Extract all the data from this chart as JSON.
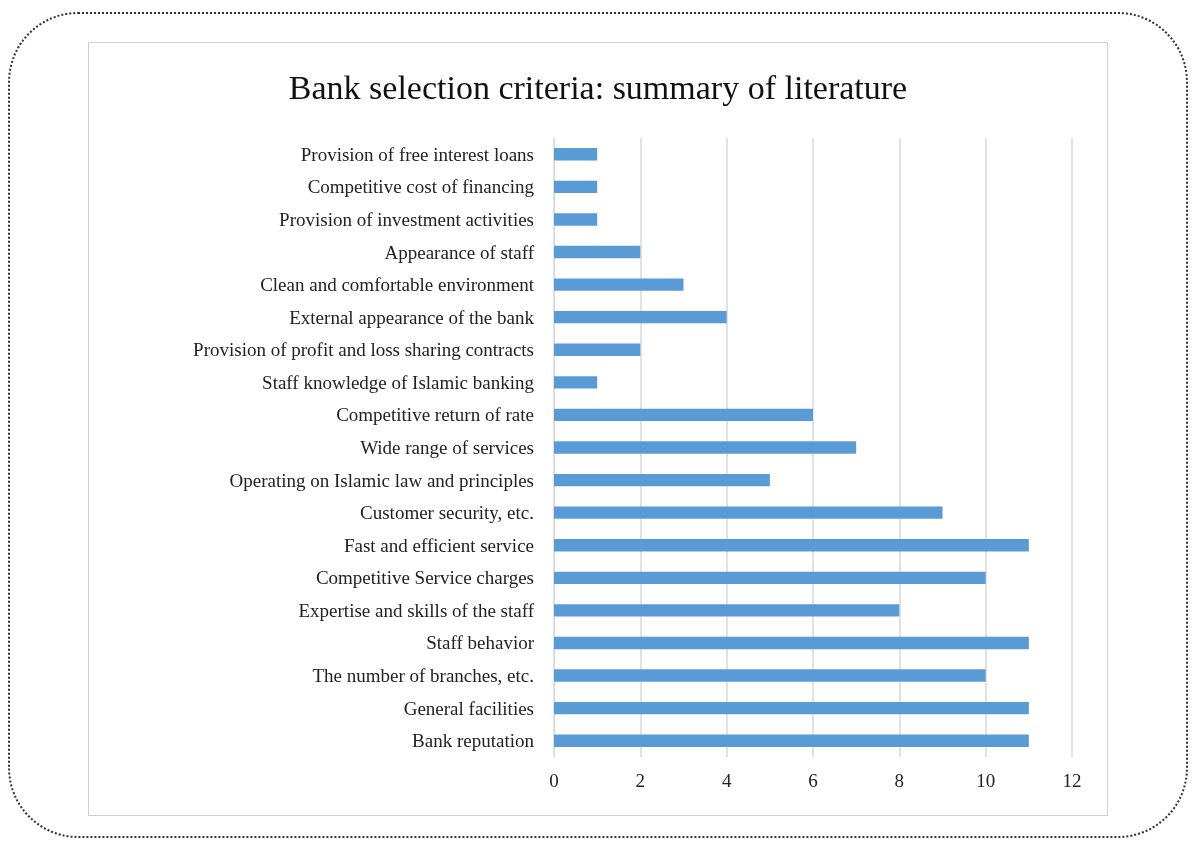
{
  "chart_data": {
    "type": "bar",
    "orientation": "horizontal",
    "title": "Bank selection criteria: summary of literature",
    "categories": [
      "Provision of free interest loans",
      "Competitive cost of financing",
      "Provision of investment activities",
      "Appearance of staff",
      "Clean and comfortable environment",
      "External appearance of the bank",
      "Provision of profit and loss sharing contracts",
      "Staff knowledge of Islamic banking",
      "Competitive return of rate",
      "Wide range of services",
      "Operating on Islamic law and principles",
      "Customer security, etc.",
      "Fast and efficient service",
      "Competitive Service charges",
      "Expertise and skills of the staff",
      "Staff behavior",
      "The number of branches, etc.",
      "General facilities",
      "Bank reputation"
    ],
    "values": [
      1,
      1,
      1,
      2,
      3,
      4,
      2,
      1,
      6,
      7,
      5,
      9,
      11,
      10,
      8,
      11,
      10,
      11,
      11
    ],
    "color": "#5b9bd5",
    "xlim": [
      0,
      12
    ],
    "xticks": [
      0,
      2,
      4,
      6,
      8,
      10,
      12
    ],
    "grid": "x"
  }
}
